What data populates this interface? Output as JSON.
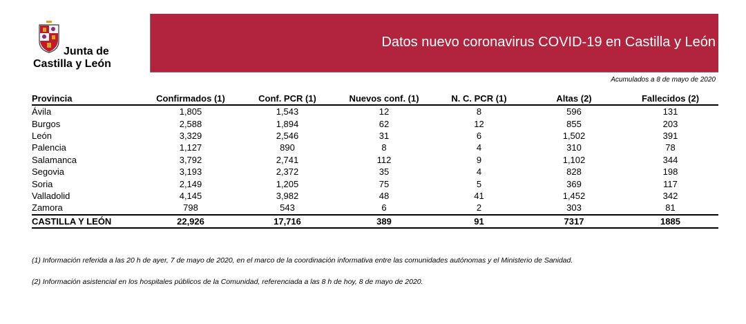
{
  "logo": {
    "line1": "Junta de",
    "line2": "Castilla y León"
  },
  "header": {
    "title": "Datos nuevo coronavirus COVID-19 en Castilla y León"
  },
  "accumulated_label": "Acumulados a 8 de mayo de 2020",
  "table": {
    "columns": [
      "Provincia",
      "Confirmados (1)",
      "Conf. PCR (1)",
      "Nuevos conf. (1)",
      "N. C. PCR (1)",
      "Altas (2)",
      "Fallecidos (2)"
    ],
    "rows": [
      [
        "Ávila",
        "1,805",
        "1,543",
        "12",
        "8",
        "596",
        "131"
      ],
      [
        "Burgos",
        "2,588",
        "1,894",
        "62",
        "12",
        "855",
        "203"
      ],
      [
        "León",
        "3,329",
        "2,546",
        "31",
        "6",
        "1,502",
        "391"
      ],
      [
        "Palencia",
        "1,127",
        "890",
        "8",
        "4",
        "310",
        "78"
      ],
      [
        "Salamanca",
        "3,792",
        "2,741",
        "112",
        "9",
        "1,102",
        "344"
      ],
      [
        "Segovia",
        "3,193",
        "2,372",
        "35",
        "4",
        "828",
        "198"
      ],
      [
        "Soria",
        "2,149",
        "1,205",
        "75",
        "5",
        "369",
        "117"
      ],
      [
        "Valladolid",
        "4,145",
        "3,982",
        "48",
        "41",
        "1,452",
        "342"
      ],
      [
        "Zamora",
        "798",
        "543",
        "6",
        "2",
        "303",
        "81"
      ]
    ],
    "total": [
      "CASTILLA Y LEÓN",
      "22,926",
      "17,716",
      "389",
      "91",
      "7317",
      "1885"
    ]
  },
  "notes": [
    "(1) Información referida a las 20 h de ayer, 7 de mayo de 2020, en el marco de la coordinación informativa entre las comunidades autónomas y el Ministerio de Sanidad.",
    "(2) Información asistencial en los hospitales públicos de la Comunidad, referenciada a las 8 h de hoy, 8 de mayo de 2020."
  ],
  "colors": {
    "banner": "#b2243e",
    "crest_red": "#c0182d",
    "crest_gold": "#d9a21b"
  }
}
